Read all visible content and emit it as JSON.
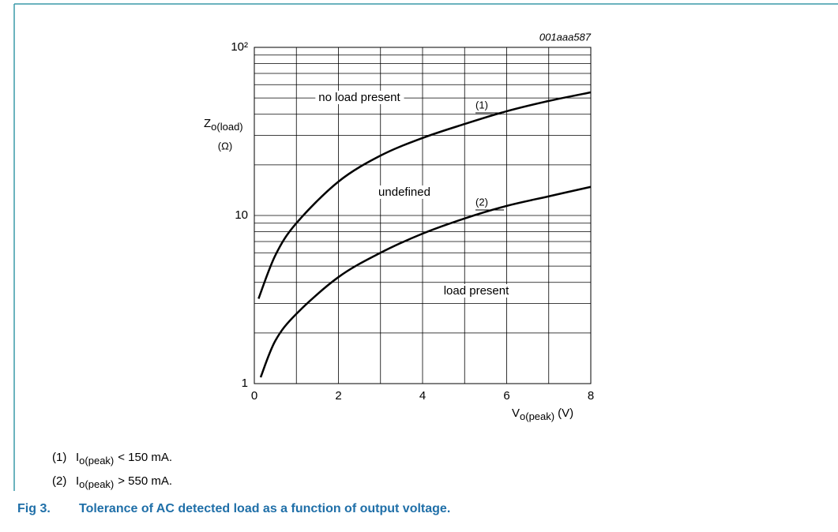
{
  "chart_data": {
    "type": "line",
    "id_code": "001aaa587",
    "y_label": {
      "main": "Z",
      "sub": "o(load)",
      "unit": "(Ω)"
    },
    "x_label": {
      "main": "V",
      "sub": "o(peak)",
      "unit": "(V)"
    },
    "xlim": [
      0,
      8
    ],
    "xticks": [
      0,
      2,
      4,
      6,
      8
    ],
    "xminorticks": [
      1,
      3,
      5,
      7
    ],
    "ylim": [
      1,
      100
    ],
    "ylog": true,
    "yticks": [
      1,
      10,
      {
        "value": 100,
        "label": "10²"
      }
    ],
    "yminorticks": [
      2,
      3,
      4,
      5,
      6,
      7,
      8,
      9,
      20,
      30,
      40,
      50,
      60,
      70,
      80,
      90
    ],
    "grid": true,
    "series": [
      {
        "name": "(1)",
        "color": "#000000",
        "x": [
          0.1,
          0.5,
          1,
          2,
          3,
          4,
          5,
          6,
          7,
          8
        ],
        "values": [
          3.2,
          5.8,
          9,
          15.9,
          22.7,
          28.9,
          35,
          41.7,
          48,
          54
        ]
      },
      {
        "name": "(2)",
        "color": "#000000",
        "x": [
          0.15,
          0.5,
          1,
          2,
          3,
          4,
          5,
          6,
          7,
          8
        ],
        "values": [
          1.09,
          1.8,
          2.6,
          4.3,
          6.0,
          7.8,
          9.6,
          11.4,
          13,
          14.8
        ]
      }
    ],
    "annotations": [
      "no load present",
      "undefined",
      "load present"
    ],
    "notes": [
      {
        "number": "(1)",
        "symbol": "I",
        "subscript": "o(peak)",
        "text": "< 150 mA."
      },
      {
        "number": "(2)",
        "symbol": "I",
        "subscript": "o(peak)",
        "text": "> 550 mA."
      }
    ],
    "caption": {
      "label": "Fig 3.",
      "text": "Tolerance of AC detected load as a function of output voltage."
    }
  }
}
